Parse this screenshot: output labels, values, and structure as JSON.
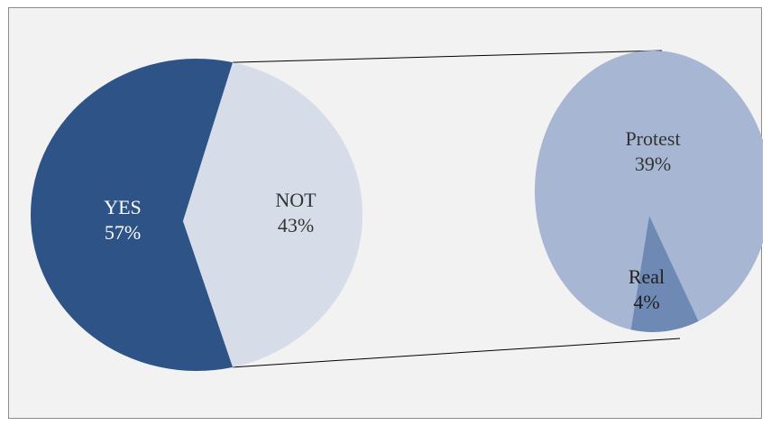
{
  "chart_data": {
    "type": "pie",
    "subtype": "pie-of-pie",
    "title": "",
    "primary_pie": {
      "slices": [
        {
          "label": "YES",
          "value": 57,
          "value_label": "57%",
          "color": "#2e5487",
          "text_color": "#ffffff"
        },
        {
          "label": "NOT",
          "value": 43,
          "value_label": "43%",
          "color": "#d6dde8",
          "text_color": "#333333"
        }
      ]
    },
    "secondary_pie": {
      "parent_slice": "NOT",
      "slices": [
        {
          "label": "Protest",
          "value": 39,
          "value_label": "39%",
          "color": "#a7b6d2",
          "text_color": "#333333"
        },
        {
          "label": "Real",
          "value": 4,
          "value_label": "4%",
          "color": "#6f89b5",
          "text_color": "#1f1f1f"
        }
      ]
    },
    "connector_color": "#000000",
    "background_color": "#f2f2f2",
    "legend": "none"
  }
}
